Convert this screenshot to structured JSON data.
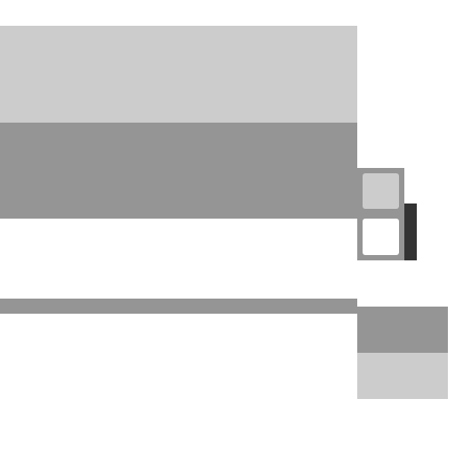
{
  "colors": {
    "background": "#ffffff",
    "light_gray": "#cccccc",
    "mid_gray": "#959595",
    "dark": "#333333",
    "white": "#ffffff"
  }
}
